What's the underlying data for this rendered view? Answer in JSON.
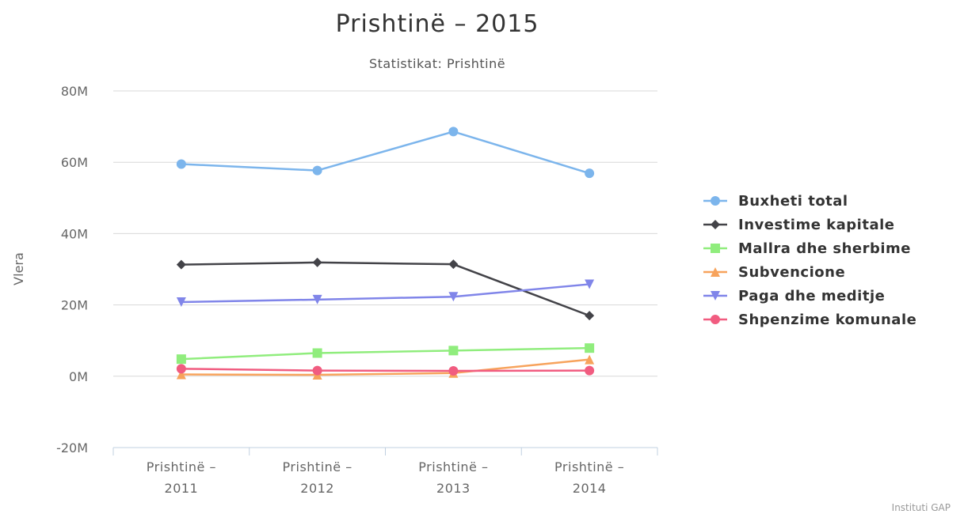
{
  "chart_data": {
    "type": "line",
    "title": "Prishtinë – 2015",
    "subtitle": "Statistikat: Prishtinë",
    "ylabel": "Vlera",
    "xlabel": "",
    "categories": [
      [
        "Prishtinë –",
        "2011"
      ],
      [
        "Prishtinë –",
        "2012"
      ],
      [
        "Prishtinë –",
        "2013"
      ],
      [
        "Prishtinë –",
        "2014"
      ]
    ],
    "ylim": [
      -20,
      80
    ],
    "yticks": [
      -20,
      0,
      20,
      40,
      60,
      80
    ],
    "ytick_labels": [
      "-20M",
      "0M",
      "20M",
      "40M",
      "60M",
      "80M"
    ],
    "grid": true,
    "legend_position": "right",
    "series": [
      {
        "name": "Buxheti total",
        "color": "#7cb5ec",
        "marker": "circle",
        "values": [
          59.5,
          57.7,
          68.6,
          56.9
        ]
      },
      {
        "name": "Investime kapitale",
        "color": "#434348",
        "marker": "diamond",
        "values": [
          31.3,
          31.9,
          31.4,
          17.0
        ]
      },
      {
        "name": "Mallra dhe sherbime",
        "color": "#90ed7d",
        "marker": "square",
        "values": [
          4.8,
          6.5,
          7.2,
          7.9
        ]
      },
      {
        "name": "Subvencione",
        "color": "#f7a35c",
        "marker": "triangle",
        "values": [
          0.5,
          0.4,
          0.9,
          4.7
        ]
      },
      {
        "name": "Paga dhe meditje",
        "color": "#8085e9",
        "marker": "triangle-down",
        "values": [
          20.8,
          21.5,
          22.3,
          25.8
        ]
      },
      {
        "name": "Shpenzime komunale",
        "color": "#f15c80",
        "marker": "circle",
        "values": [
          2.1,
          1.6,
          1.5,
          1.6
        ]
      }
    ],
    "credits": "Instituti GAP"
  }
}
